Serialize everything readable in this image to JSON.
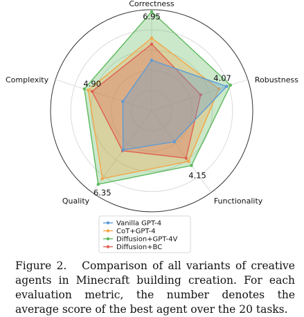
{
  "chart_data": {
    "type": "radar",
    "axes": [
      "Correctness",
      "Robustness",
      "Functionality",
      "Quality",
      "Complexity"
    ],
    "best_scores": [
      "6.95",
      "4.07",
      "4.15",
      "6.35",
      "4.90"
    ],
    "grid": true,
    "legend_position": "bottom-center",
    "series": [
      {
        "name": "Vanilla GPT-4",
        "color": "#5b9bd5",
        "values": [
          0.5,
          0.78,
          0.38,
          0.48,
          0.3
        ]
      },
      {
        "name": "CoT+GPT-4",
        "color": "#f4a646",
        "values": [
          0.72,
          0.7,
          0.62,
          0.83,
          0.66
        ]
      },
      {
        "name": "Diffusion+GPT-4V",
        "color": "#5cb85c",
        "values": [
          0.98,
          0.82,
          0.67,
          0.9,
          0.7
        ]
      },
      {
        "name": "Diffusion+BC",
        "color": "#e06050",
        "values": [
          0.66,
          0.51,
          0.58,
          0.49,
          0.62
        ]
      }
    ]
  },
  "caption": {
    "label": "Figure 2.",
    "text": "Comparison of all variants of creative agents in Minecraft building creation. For each evaluation metric, the number denotes the average score of the best agent over the 20 tasks."
  }
}
